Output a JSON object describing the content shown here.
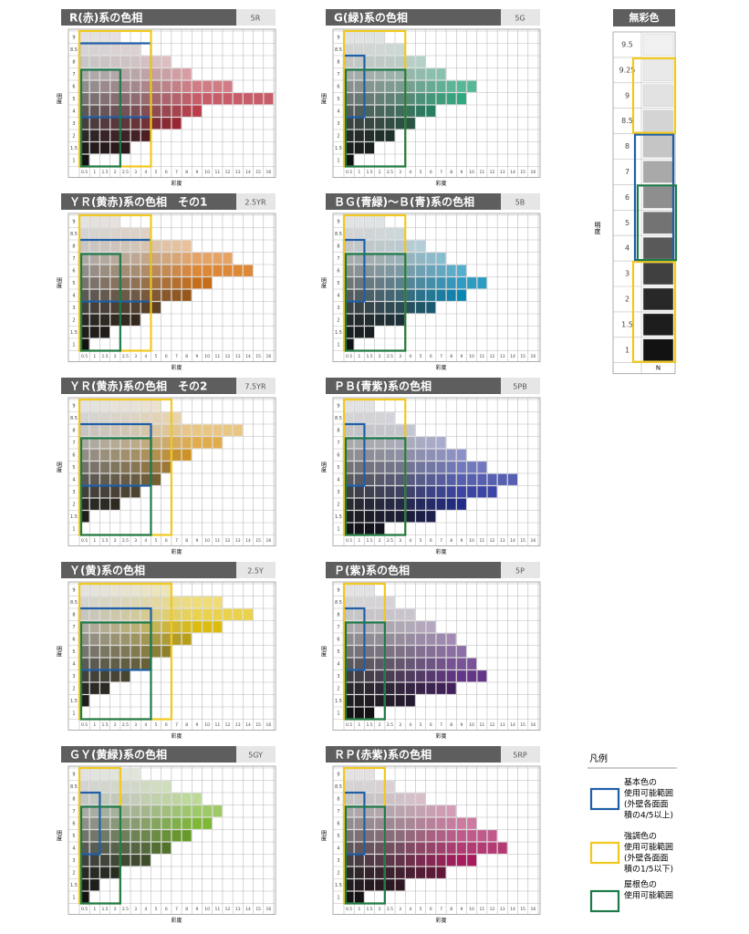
{
  "axis": {
    "y_label": "明度",
    "x_label": "彩度",
    "rows": [
      9,
      8.5,
      8,
      7,
      6,
      5,
      4,
      3,
      2,
      1.5,
      1
    ],
    "columns": [
      0.5,
      1,
      1.5,
      2,
      2.5,
      3,
      4,
      5,
      6,
      7,
      8,
      9,
      10,
      11,
      12,
      13,
      14,
      15,
      16
    ]
  },
  "panels": [
    {
      "title": "R(赤)系の色相",
      "code": "5R",
      "color": "#b01a2a",
      "extents": [
        4,
        6,
        9,
        11,
        15,
        19,
        12,
        10,
        7,
        5,
        1
      ],
      "frames": {
        "basic": {
          "chroma": 4,
          "lightness": [
            8.5,
            4
          ]
        },
        "accent": {
          "chroma": 4,
          "lightness": [
            9,
            1
          ]
        },
        "roof": {
          "chroma": 2,
          "lightness": [
            7,
            1
          ]
        }
      }
    },
    {
      "title": "G(緑)系の色相",
      "code": "5G",
      "color": "#0f9a6a",
      "extents": [
        4,
        6,
        8,
        10,
        13,
        12,
        9,
        7,
        5,
        3,
        1
      ],
      "frames": {
        "basic": {
          "chroma": 1,
          "lightness": [
            8,
            4
          ]
        },
        "accent": {
          "chroma": 3,
          "lightness": [
            9,
            1
          ]
        },
        "roof": {
          "chroma": 3,
          "lightness": [
            7,
            1
          ]
        }
      }
    },
    {
      "title": "ＹＲ(黄赤)系の色相　その1",
      "code": "2.5YR",
      "color": "#d9781c",
      "extents": [
        4,
        7,
        11,
        15,
        17,
        13,
        11,
        8,
        6,
        3,
        1
      ],
      "frames": {
        "basic": {
          "chroma": 4,
          "lightness": [
            8,
            4
          ]
        },
        "accent": {
          "chroma": 4,
          "lightness": [
            9,
            1
          ]
        },
        "roof": {
          "chroma": 2,
          "lightness": [
            7,
            1
          ]
        }
      }
    },
    {
      "title": "ＢＧ(青緑)～Ｂ(青)系の色相",
      "code": "5B",
      "color": "#0a8ab8",
      "extents": [
        4,
        6,
        8,
        10,
        12,
        14,
        12,
        9,
        6,
        3,
        1
      ],
      "frames": {
        "basic": {
          "chroma": 1,
          "lightness": [
            8,
            4
          ]
        },
        "accent": {
          "chroma": 3,
          "lightness": [
            9,
            1
          ]
        },
        "roof": {
          "chroma": 3,
          "lightness": [
            7,
            1
          ]
        }
      }
    },
    {
      "title": "ＹＲ(黄赤)系の色相　その2",
      "code": "7.5YR",
      "color": "#d9961a",
      "extents": [
        8,
        10,
        16,
        14,
        11,
        9,
        8,
        6,
        4,
        1,
        0
      ],
      "frames": {
        "basic": {
          "chroma": 4,
          "lightness": [
            8,
            4
          ]
        },
        "accent": {
          "chroma": 6,
          "lightness": [
            9,
            1
          ]
        },
        "roof": {
          "chroma": 4,
          "lightness": [
            7,
            1
          ]
        }
      }
    },
    {
      "title": "ＰＢ(青紫)系の色相",
      "code": "5PB",
      "color": "#27329a",
      "extents": [
        3,
        5,
        7,
        10,
        12,
        14,
        17,
        15,
        12,
        9,
        4
      ],
      "frames": {
        "basic": {
          "chroma": 1,
          "lightness": [
            8,
            4
          ]
        },
        "accent": {
          "chroma": 3,
          "lightness": [
            9,
            1
          ]
        },
        "roof": {
          "chroma": 3,
          "lightness": [
            7,
            1
          ]
        }
      }
    },
    {
      "title": "Ｙ(黄)系の色相",
      "code": "2.5Y",
      "color": "#e3c20e",
      "extents": [
        9,
        14,
        17,
        14,
        11,
        9,
        7,
        5,
        3,
        1,
        0
      ],
      "frames": {
        "basic": {
          "chroma": 4,
          "lightness": [
            8,
            4
          ]
        },
        "accent": {
          "chroma": 6,
          "lightness": [
            9,
            1
          ]
        },
        "roof": {
          "chroma": 4,
          "lightness": [
            7,
            1
          ]
        }
      }
    },
    {
      "title": "Ｐ(紫)系の色相",
      "code": "5P",
      "color": "#5a2a80",
      "extents": [
        3,
        5,
        7,
        9,
        11,
        12,
        13,
        14,
        11,
        7,
        3
      ],
      "frames": {
        "basic": {
          "chroma": 1,
          "lightness": [
            8,
            4
          ]
        },
        "accent": {
          "chroma": 2,
          "lightness": [
            9,
            1
          ]
        },
        "roof": {
          "chroma": 2,
          "lightness": [
            7,
            1
          ]
        }
      }
    },
    {
      "title": "ＧＹ(黄緑)系の色相",
      "code": "5GY",
      "color": "#6fb020",
      "extents": [
        6,
        9,
        12,
        14,
        13,
        11,
        9,
        7,
        4,
        2,
        1
      ],
      "frames": {
        "basic": {
          "chroma": 1,
          "lightness": [
            8,
            4
          ]
        },
        "accent": {
          "chroma": 2,
          "lightness": [
            9,
            1
          ]
        },
        "roof": {
          "chroma": 2,
          "lightness": [
            7,
            1
          ]
        }
      }
    },
    {
      "title": "ＲＰ(赤紫)系の色相",
      "code": "5RP",
      "color": "#a81a5c",
      "extents": [
        3,
        5,
        8,
        11,
        13,
        15,
        16,
        13,
        10,
        6,
        2
      ],
      "frames": {
        "basic": {
          "chroma": 1,
          "lightness": [
            8,
            4
          ]
        },
        "accent": {
          "chroma": 2,
          "lightness": [
            9,
            1
          ]
        },
        "roof": {
          "chroma": 2,
          "lightness": [
            7,
            1
          ]
        }
      }
    }
  ],
  "achromatic": {
    "title": "無彩色",
    "y_label": "明度",
    "rows": [
      9.5,
      9.25,
      9,
      8.5,
      8,
      7,
      6,
      5,
      4,
      3,
      2,
      1.5,
      1
    ],
    "footer": "N",
    "frames": {
      "basic": [
        [
          8,
          4
        ]
      ],
      "accent": [
        [
          9.25,
          8.5
        ],
        [
          3,
          1
        ]
      ],
      "roof": [
        [
          6,
          4
        ]
      ]
    }
  },
  "legend": {
    "title": "凡例",
    "items": {
      "basic": {
        "color": "#1f5fa8",
        "lines": [
          "基本色の",
          "使用可能範囲",
          "(外壁各面面",
          "積の4/5以上)"
        ]
      },
      "accent": {
        "color": "#f2c81e",
        "lines": [
          "強調色の",
          "使用可能範囲",
          "(外壁各面面",
          "積の1/5以下)"
        ]
      },
      "roof": {
        "color": "#1e7a4a",
        "lines": [
          "屋根色の",
          "使用可能範囲"
        ]
      }
    }
  }
}
